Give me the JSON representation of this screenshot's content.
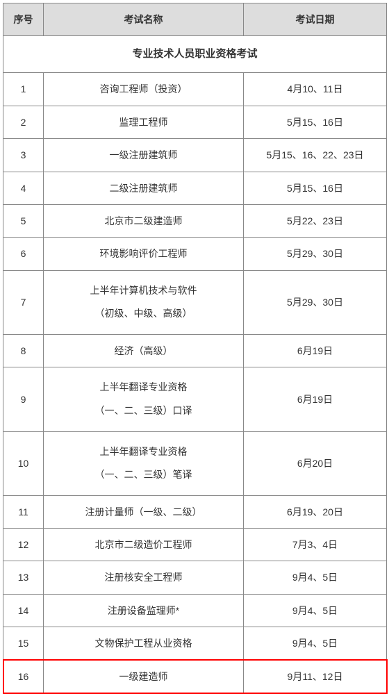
{
  "table": {
    "headers": {
      "index": "序号",
      "name": "考试名称",
      "date": "考试日期"
    },
    "section_title": "专业技术人员职业资格考试",
    "rows": [
      {
        "index": "1",
        "name": "咨询工程师（投资）",
        "date": "4月10、11日"
      },
      {
        "index": "2",
        "name": "监理工程师",
        "date": "5月15、16日"
      },
      {
        "index": "3",
        "name": "一级注册建筑师",
        "date": "5月15、16、22、23日"
      },
      {
        "index": "4",
        "name": "二级注册建筑师",
        "date": "5月15、16日"
      },
      {
        "index": "5",
        "name": "北京市二级建造师",
        "date": "5月22、23日"
      },
      {
        "index": "6",
        "name": "环境影响评价工程师",
        "date": "5月29、30日"
      },
      {
        "index": "7",
        "name_line1": "上半年计算机技术与软件",
        "name_line2": "（初级、中级、高级）",
        "date": "5月29、30日",
        "multiline": true
      },
      {
        "index": "8",
        "name": "经济（高级）",
        "date": "6月19日"
      },
      {
        "index": "9",
        "name_line1": "上半年翻译专业资格",
        "name_line2": "（一、二、三级）口译",
        "date": "6月19日",
        "multiline": true
      },
      {
        "index": "10",
        "name_line1": "上半年翻译专业资格",
        "name_line2": "（一、二、三级）笔译",
        "date": "6月20日",
        "multiline": true
      },
      {
        "index": "11",
        "name": "注册计量师（一级、二级）",
        "date": "6月19、20日"
      },
      {
        "index": "12",
        "name": "北京市二级造价工程师",
        "date": "7月3、4日"
      },
      {
        "index": "13",
        "name": "注册核安全工程师",
        "date": "9月4、5日"
      },
      {
        "index": "14",
        "name": "注册设备监理师*",
        "date": "9月4、5日"
      },
      {
        "index": "15",
        "name": "文物保护工程从业资格",
        "date": "9月4、5日"
      },
      {
        "index": "16",
        "name": "一级建造师",
        "date": "9月11、12日",
        "highlight": true
      }
    ],
    "colors": {
      "header_bg": "#dddddd",
      "border": "#888888",
      "text": "#333333",
      "highlight_border": "#ff0000"
    }
  }
}
